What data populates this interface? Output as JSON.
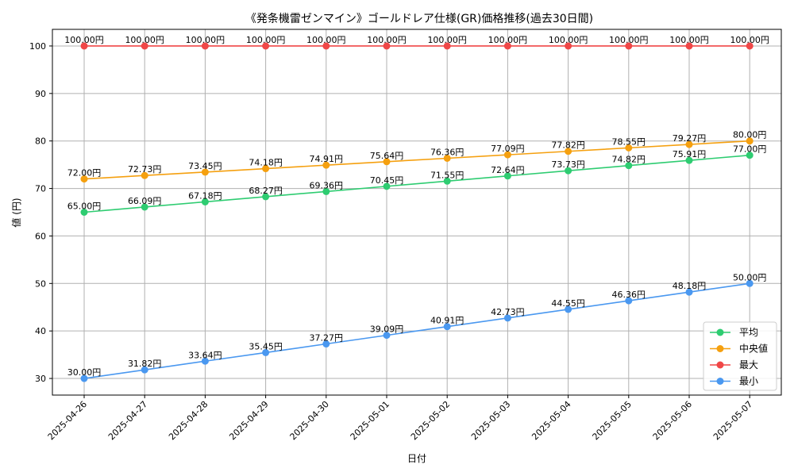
{
  "chart_data": {
    "type": "line",
    "title": "《発条機雷ゼンマイン》ゴールドレア仕様(GR)価格推移(過去30日間)",
    "xlabel": "日付",
    "ylabel": "値 (円)",
    "ylim": [
      26.5,
      103.5
    ],
    "yticks": [
      30,
      40,
      50,
      60,
      70,
      80,
      90,
      100
    ],
    "grid": true,
    "legend_position": "lower-right",
    "x": [
      "2025-04-26",
      "2025-04-27",
      "2025-04-28",
      "2025-04-29",
      "2025-04-30",
      "2025-05-01",
      "2025-05-02",
      "2025-05-03",
      "2025-05-04",
      "2025-05-05",
      "2025-05-06",
      "2025-05-07"
    ],
    "series": [
      {
        "name": "平均",
        "color": "#2ecc71",
        "values": [
          65.0,
          66.09,
          67.18,
          68.27,
          69.36,
          70.45,
          71.55,
          72.64,
          73.73,
          74.82,
          75.91,
          77.0
        ],
        "labels": [
          "65.00円",
          "66.09円",
          "67.18円",
          "68.27円",
          "69.36円",
          "70.45円",
          "71.55円",
          "72.64円",
          "73.73円",
          "74.82円",
          "75.91円",
          "77.00円"
        ]
      },
      {
        "name": "中央値",
        "color": "#f5a00f",
        "values": [
          72.0,
          72.73,
          73.45,
          74.18,
          74.91,
          75.64,
          76.36,
          77.09,
          77.82,
          78.55,
          79.27,
          80.0
        ],
        "labels": [
          "72.00円",
          "72.73円",
          "73.45円",
          "74.18円",
          "74.91円",
          "75.64円",
          "76.36円",
          "77.09円",
          "77.82円",
          "78.55円",
          "79.27円",
          "80.00円"
        ]
      },
      {
        "name": "最大",
        "color": "#f04747",
        "values": [
          100,
          100,
          100,
          100,
          100,
          100,
          100,
          100,
          100,
          100,
          100,
          100
        ],
        "labels": [
          "100.00円",
          "100.00円",
          "100.00円",
          "100.00円",
          "100.00円",
          "100.00円",
          "100.00円",
          "100.00円",
          "100.00円",
          "100.00円",
          "100.00円",
          "100.00円"
        ]
      },
      {
        "name": "最小",
        "color": "#4a98f0",
        "values": [
          30.0,
          31.82,
          33.64,
          35.45,
          37.27,
          39.09,
          40.91,
          42.73,
          44.55,
          46.36,
          48.18,
          50.0
        ],
        "labels": [
          "30.00円",
          "31.82円",
          "33.64円",
          "35.45円",
          "37.27円",
          "39.09円",
          "40.91円",
          "42.73円",
          "44.55円",
          "46.36円",
          "48.18円",
          "50.00円"
        ]
      }
    ]
  }
}
